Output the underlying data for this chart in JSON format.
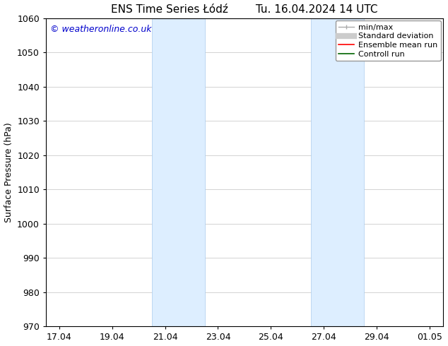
{
  "title": "ENS Time Series Łódź        Tu. 16.04.2024 14 UTC",
  "ylabel": "Surface Pressure (hPa)",
  "ylim": [
    970,
    1060
  ],
  "yticks": [
    970,
    980,
    990,
    1000,
    1010,
    1020,
    1030,
    1040,
    1050,
    1060
  ],
  "x_tick_labels": [
    "17.04",
    "19.04",
    "21.04",
    "23.04",
    "25.04",
    "27.04",
    "29.04",
    "01.05"
  ],
  "x_tick_positions": [
    0,
    2,
    4,
    6,
    8,
    10,
    12,
    14
  ],
  "xlim": [
    -0.5,
    14.5
  ],
  "shaded_bands": [
    {
      "x_start": 3.5,
      "x_end": 5.5
    },
    {
      "x_start": 9.5,
      "x_end": 11.5
    }
  ],
  "shaded_color": "#ddeeff",
  "shaded_edge_color": "#aaccee",
  "copyright_text": "© weatheronline.co.uk",
  "copyright_color": "#0000cc",
  "bg_color": "#ffffff",
  "grid_color": "#cccccc",
  "font_size": 9,
  "title_font_size": 11,
  "legend": {
    "min_max_color": "#aaaaaa",
    "std_dev_color": "#cccccc",
    "ensemble_color": "#ff0000",
    "control_color": "#006400"
  }
}
